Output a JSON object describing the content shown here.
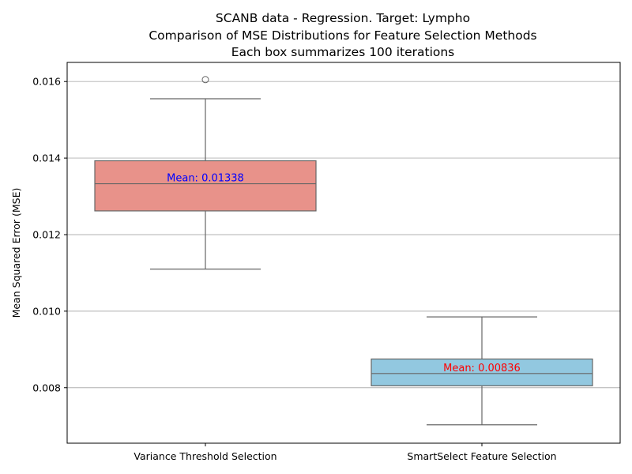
{
  "chart_data": {
    "type": "box",
    "title": [
      "SCANB data - Regression. Target: Lympho",
      "Comparison of MSE Distributions for Feature Selection Methods",
      "Each box summarizes 100 iterations"
    ],
    "xlabel": "",
    "ylabel": "Mean Squared Error (MSE)",
    "ylim": [
      0.00655,
      0.0165
    ],
    "yticks": [
      "0.008",
      "0.010",
      "0.012",
      "0.014",
      "0.016"
    ],
    "ytick_values": [
      0.008,
      0.01,
      0.012,
      0.014,
      0.016
    ],
    "grid": "horizontal",
    "categories": [
      "Variance Threshold Selection",
      "SmartSelect Feature Selection"
    ],
    "boxes": [
      {
        "category": "Variance Threshold Selection",
        "color": "#e8928a",
        "whisker_low": 0.0111,
        "q1": 0.01262,
        "median": 0.01333,
        "q3": 0.01393,
        "whisker_high": 0.01555,
        "outliers": [
          0.01605
        ],
        "mean_label": "Mean: 0.01338",
        "mean_label_color": "#0000ff"
      },
      {
        "category": "SmartSelect Feature Selection",
        "color": "#92c8e0",
        "whisker_low": 0.00703,
        "q1": 0.00805,
        "median": 0.00837,
        "q3": 0.00875,
        "whisker_high": 0.00985,
        "outliers": [],
        "mean_label": "Mean: 0.00836",
        "mean_label_color": "#ff0000"
      }
    ]
  }
}
